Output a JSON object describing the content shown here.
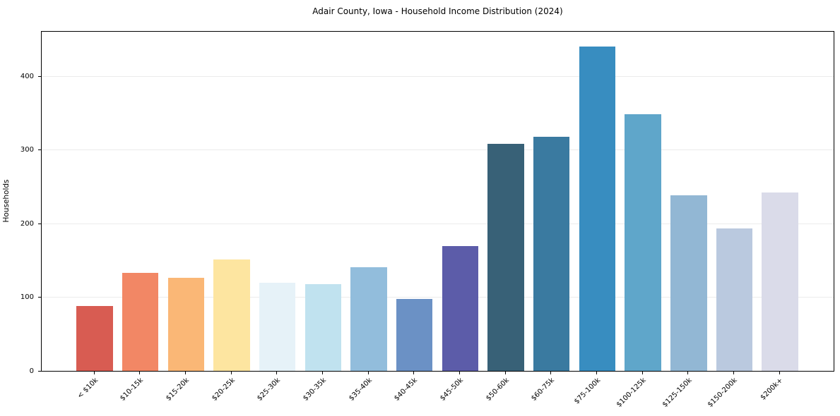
{
  "chart_data": {
    "type": "bar",
    "title": "Adair County, Iowa - Household Income Distribution (2024)",
    "xlabel": "",
    "ylabel": "Households",
    "ylim": [
      0,
      462
    ],
    "yticks": [
      0,
      100,
      200,
      300,
      400
    ],
    "grid": "horizontal",
    "legend": "none",
    "categories": [
      "< $10k",
      "$10-15k",
      "$15-20k",
      "$20-25k",
      "$25-30k",
      "$30-35k",
      "$35-40k",
      "$40-45k",
      "$45-50k",
      "$50-60k",
      "$60-75k",
      "$75-100k",
      "$100-125k",
      "$125-150k",
      "$150-200k",
      "$200k+"
    ],
    "values": [
      88,
      133,
      126,
      151,
      120,
      118,
      141,
      98,
      169,
      308,
      318,
      440,
      348,
      238,
      193,
      242
    ],
    "bar_colors": [
      "#d85c52",
      "#f28765",
      "#fab776",
      "#fde5a0",
      "#e6f2f8",
      "#c0e2ef",
      "#92bddc",
      "#6b91c5",
      "#5c5ca9",
      "#386177",
      "#3a7aa0",
      "#388dc0",
      "#5fa6ca",
      "#92b7d4",
      "#bac9df",
      "#dadbe9"
    ]
  }
}
